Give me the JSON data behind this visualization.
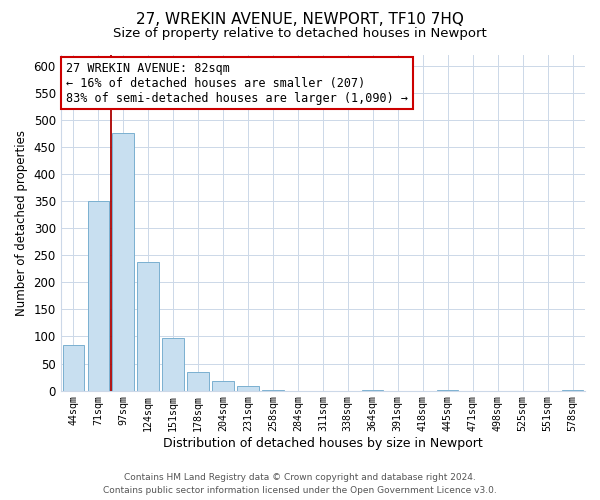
{
  "title": "27, WREKIN AVENUE, NEWPORT, TF10 7HQ",
  "subtitle": "Size of property relative to detached houses in Newport",
  "xlabel": "Distribution of detached houses by size in Newport",
  "ylabel": "Number of detached properties",
  "bar_labels": [
    "44sqm",
    "71sqm",
    "97sqm",
    "124sqm",
    "151sqm",
    "178sqm",
    "204sqm",
    "231sqm",
    "258sqm",
    "284sqm",
    "311sqm",
    "338sqm",
    "364sqm",
    "391sqm",
    "418sqm",
    "445sqm",
    "471sqm",
    "498sqm",
    "525sqm",
    "551sqm",
    "578sqm"
  ],
  "bar_values": [
    85,
    350,
    475,
    237,
    97,
    35,
    18,
    8,
    2,
    0,
    0,
    0,
    2,
    0,
    0,
    2,
    0,
    0,
    0,
    0,
    2
  ],
  "bar_color": "#c8dff0",
  "bar_edge_color": "#7ab0d0",
  "vline_color": "#aa0000",
  "ylim": [
    0,
    620
  ],
  "yticks": [
    0,
    50,
    100,
    150,
    200,
    250,
    300,
    350,
    400,
    450,
    500,
    550,
    600
  ],
  "annotation_line1": "27 WREKIN AVENUE: 82sqm",
  "annotation_line2": "← 16% of detached houses are smaller (207)",
  "annotation_line3": "83% of semi-detached houses are larger (1,090) →",
  "footer_line1": "Contains HM Land Registry data © Crown copyright and database right 2024.",
  "footer_line2": "Contains public sector information licensed under the Open Government Licence v3.0.",
  "background_color": "#ffffff",
  "grid_color": "#ccd8e8",
  "title_fontsize": 11,
  "subtitle_fontsize": 9.5,
  "annotation_fontsize": 8.5,
  "footer_fontsize": 6.5
}
